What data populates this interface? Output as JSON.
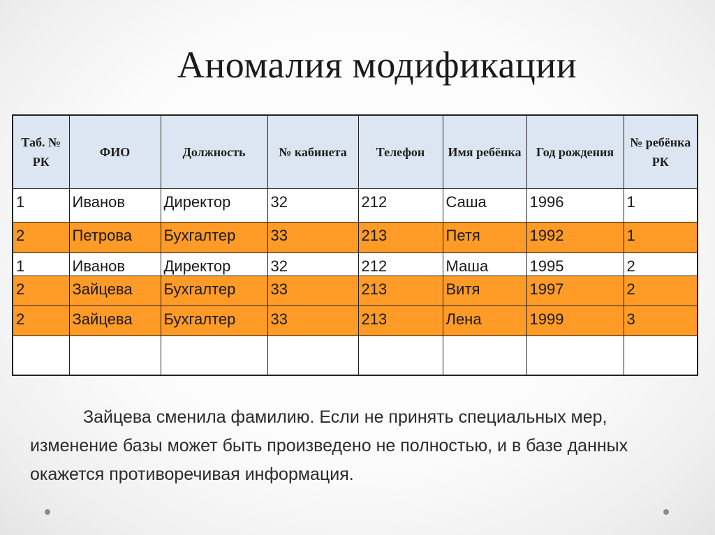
{
  "slide": {
    "title": "Аномалия модификации"
  },
  "table": {
    "headers": [
      "Таб. № РК",
      "ФИО",
      "Должность",
      "№ кабинета",
      "Телефон",
      "Имя ребёнка",
      "Год рождения",
      "№ ребёнка РК"
    ],
    "rows": [
      [
        "1",
        "Иванов",
        "Директор",
        "32",
        "212",
        "Саша",
        "1996",
        "1"
      ],
      [
        "2",
        "Петрова",
        "Бухгалтер",
        "33",
        "213",
        "Петя",
        "1992",
        "1"
      ],
      [
        "1",
        "Иванов",
        "Директор",
        "32",
        "212",
        "Маша",
        "1995",
        "2"
      ],
      [
        "2",
        "Зайцева",
        "Бухгалтер",
        "33",
        "213",
        "Витя",
        "1997",
        "2"
      ],
      [
        "2",
        "Зайцева",
        "Бухгалтер",
        "33",
        "213",
        "Лена",
        "1999",
        "3"
      ],
      [
        "",
        "",
        "",
        "",
        "",
        "",
        "",
        ""
      ]
    ],
    "highlight_color": "#ff9b26",
    "header_color": "#dce6f2"
  },
  "note": {
    "text": "Зайцева сменила фамилию. Если не принять специальных мер, изменение базы может быть произведено не полностью, и в базе данных окажется противоречивая информация."
  }
}
